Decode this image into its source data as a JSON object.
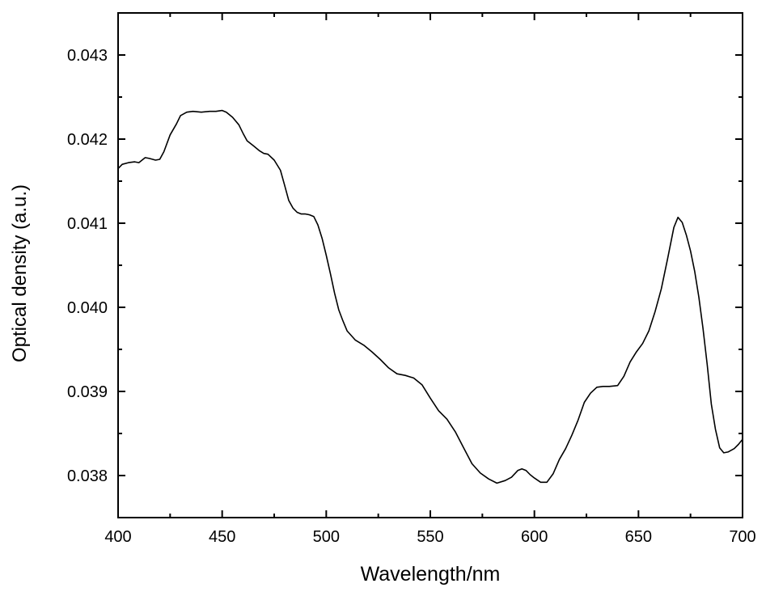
{
  "chart_data": {
    "type": "line",
    "title": "",
    "xlabel": "Wavelength/nm",
    "ylabel": "Optical density (a.u.)",
    "xlim": [
      400,
      700
    ],
    "ylim": [
      0.0375,
      0.0435
    ],
    "x_ticks": [
      400,
      450,
      500,
      550,
      600,
      650,
      700
    ],
    "x_tick_labels": [
      "400",
      "450",
      "500",
      "550",
      "600",
      "650",
      "700"
    ],
    "y_ticks": [
      0.038,
      0.039,
      0.04,
      0.041,
      0.042,
      0.043
    ],
    "y_tick_labels": [
      "0.038",
      "0.039",
      "0.040",
      "0.041",
      "0.042",
      "0.043"
    ],
    "grid": false,
    "series": [
      {
        "color": "#000000",
        "x": [
          400,
          402,
          405,
          408,
          410,
          413,
          415,
          418,
          420,
          422,
          425,
          428,
          430,
          433,
          436,
          440,
          444,
          447,
          450,
          452,
          455,
          458,
          460,
          462,
          465,
          468,
          470,
          472,
          475,
          478,
          480,
          482,
          484,
          486,
          488,
          490,
          492,
          494,
          496,
          498,
          500,
          502,
          504,
          506,
          508,
          510,
          514,
          518,
          522,
          526,
          530,
          534,
          538,
          542,
          546,
          550,
          554,
          558,
          562,
          566,
          570,
          574,
          578,
          582,
          586,
          589,
          592,
          594,
          596,
          598,
          600,
          603,
          606,
          609,
          612,
          615,
          618,
          621,
          624,
          627,
          630,
          633,
          636,
          640,
          643,
          646,
          649,
          652,
          655,
          658,
          661,
          664,
          667,
          669,
          671,
          673,
          675,
          677,
          679,
          681,
          683,
          685,
          687,
          689,
          691,
          693,
          696,
          698,
          700
        ],
        "y": [
          0.04165,
          0.0417,
          0.04172,
          0.04173,
          0.04172,
          0.04178,
          0.04177,
          0.04175,
          0.04176,
          0.04185,
          0.04205,
          0.04218,
          0.04228,
          0.04232,
          0.04233,
          0.04232,
          0.04233,
          0.04233,
          0.04234,
          0.04232,
          0.04226,
          0.04217,
          0.04207,
          0.04198,
          0.04192,
          0.04186,
          0.04183,
          0.04182,
          0.04175,
          0.04163,
          0.04145,
          0.04127,
          0.04118,
          0.04113,
          0.04111,
          0.04111,
          0.0411,
          0.04108,
          0.04098,
          0.04082,
          0.04062,
          0.0404,
          0.04017,
          0.03997,
          0.03984,
          0.03972,
          0.03961,
          0.03955,
          0.03947,
          0.03938,
          0.03928,
          0.03921,
          0.03919,
          0.03916,
          0.03908,
          0.03892,
          0.03877,
          0.03867,
          0.03852,
          0.03833,
          0.03814,
          0.03803,
          0.03796,
          0.03791,
          0.03794,
          0.03798,
          0.03806,
          0.03808,
          0.03806,
          0.03801,
          0.03797,
          0.03792,
          0.03792,
          0.03802,
          0.03819,
          0.03832,
          0.03848,
          0.03866,
          0.03887,
          0.03898,
          0.03905,
          0.03906,
          0.03906,
          0.03907,
          0.03918,
          0.03935,
          0.03947,
          0.03957,
          0.03972,
          0.03995,
          0.04022,
          0.04058,
          0.04095,
          0.04107,
          0.04101,
          0.04086,
          0.04067,
          0.04043,
          0.04012,
          0.03975,
          0.03932,
          0.03885,
          0.03855,
          0.03833,
          0.03827,
          0.03828,
          0.03832,
          0.03837,
          0.03843
        ]
      }
    ]
  }
}
